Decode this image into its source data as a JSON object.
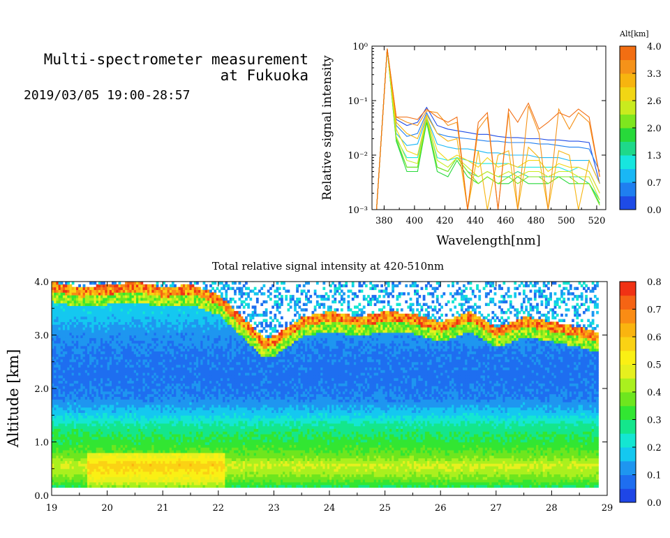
{
  "header": {
    "title_line1": "Multi-spectrometer measurement",
    "title_line2": "at Fukuoka",
    "datetime": "2019/03/05 19:00-28:57"
  },
  "colors": {
    "altitude_scale": [
      "#1e4be6",
      "#1f7ff0",
      "#19b7f5",
      "#17e6df",
      "#1ed98a",
      "#27d93a",
      "#7ee61e",
      "#c9eb1e",
      "#f2d614",
      "#f7b40f",
      "#f59219",
      "#f26e12"
    ],
    "intensity_scale": [
      "#1e46e6",
      "#1e6ef0",
      "#1e96f0",
      "#14c8f0",
      "#14e6d2",
      "#14e68c",
      "#32e632",
      "#6ee61e",
      "#aaf01e",
      "#e6f01e",
      "#faf014",
      "#fad214",
      "#fab40f",
      "#fa8c14",
      "#f56414",
      "#f03214"
    ]
  },
  "chart_data": [
    {
      "type": "line",
      "title": "",
      "xlabel": "Wavelength[nm]",
      "ylabel": "Relative signal intensity",
      "xlim": [
        372,
        526
      ],
      "ylim": [
        0.001,
        1
      ],
      "log_y": true,
      "x_ticks": [
        "380",
        "400",
        "420",
        "440",
        "460",
        "480",
        "500",
        "520"
      ],
      "y_ticks": [
        "10⁰",
        "10⁻¹",
        "10⁻²",
        "10⁻³"
      ],
      "grid": false,
      "colorbar": {
        "label": "Alt[km]",
        "ticks": [
          "4.0",
          "3.3",
          "2.6",
          "2.0",
          "1.3",
          "0.7",
          "0.0"
        ],
        "range": [
          0.0,
          4.0
        ]
      },
      "x": [
        375,
        382,
        388,
        395,
        402,
        408,
        415,
        422,
        428,
        435,
        442,
        448,
        455,
        462,
        468,
        475,
        482,
        488,
        495,
        502,
        508,
        515,
        522
      ],
      "series": [
        {
          "alt": 0.1,
          "color": "#1e4be6",
          "values": [
            0.001,
            0.9,
            0.045,
            0.035,
            0.04,
            0.075,
            0.035,
            0.03,
            0.028,
            0.026,
            0.024,
            0.024,
            0.022,
            0.021,
            0.021,
            0.02,
            0.02,
            0.019,
            0.019,
            0.018,
            0.018,
            0.017,
            0.003
          ]
        },
        {
          "alt": 0.4,
          "color": "#1f7ff0",
          "values": [
            0.001,
            0.9,
            0.035,
            0.022,
            0.025,
            0.06,
            0.025,
            0.022,
            0.021,
            0.02,
            0.019,
            0.018,
            0.018,
            0.017,
            0.017,
            0.017,
            0.016,
            0.016,
            0.015,
            0.014,
            0.014,
            0.013,
            0.005
          ]
        },
        {
          "alt": 0.9,
          "color": "#19b7f5",
          "values": [
            0.001,
            0.9,
            0.025,
            0.015,
            0.016,
            0.05,
            0.016,
            0.014,
            0.013,
            0.013,
            0.012,
            0.011,
            0.011,
            0.01,
            0.01,
            0.01,
            0.009,
            0.009,
            0.009,
            0.008,
            0.008,
            0.008,
            0.003
          ]
        },
        {
          "alt": 1.3,
          "color": "#17e6df",
          "values": [
            0.001,
            0.9,
            0.02,
            0.009,
            0.009,
            0.045,
            0.009,
            0.008,
            0.009,
            0.008,
            0.007,
            0.007,
            0.007,
            0.007,
            0.006,
            0.006,
            0.006,
            0.006,
            0.006,
            0.005,
            0.006,
            0.005,
            0.002
          ]
        },
        {
          "alt": 1.7,
          "color": "#1ed98a",
          "values": [
            0.001,
            0.9,
            0.018,
            0.006,
            0.006,
            0.04,
            0.006,
            0.005,
            0.009,
            0.005,
            0.004,
            0.005,
            0.004,
            0.004,
            0.005,
            0.004,
            0.004,
            0.004,
            0.004,
            0.004,
            0.004,
            0.003,
            0.0015
          ]
        },
        {
          "alt": 2.1,
          "color": "#27d93a",
          "values": [
            0.001,
            0.9,
            0.018,
            0.005,
            0.005,
            0.04,
            0.005,
            0.004,
            0.008,
            0.004,
            0.003,
            0.004,
            0.003,
            0.003,
            0.004,
            0.003,
            0.003,
            0.003,
            0.004,
            0.003,
            0.003,
            0.003,
            0.0013
          ]
        },
        {
          "alt": 2.5,
          "color": "#7ee61e",
          "values": [
            0.001,
            0.9,
            0.02,
            0.006,
            0.006,
            0.045,
            0.006,
            0.005,
            0.009,
            0.005,
            0.003,
            0.004,
            0.003,
            0.004,
            0.003,
            0.004,
            0.004,
            0.003,
            0.004,
            0.004,
            0.003,
            0.003,
            0.0012
          ]
        },
        {
          "alt": 2.9,
          "color": "#c9eb1e",
          "values": [
            0.001,
            0.9,
            0.022,
            0.008,
            0.007,
            0.05,
            0.008,
            0.006,
            0.009,
            0.006,
            0.004,
            0.005,
            0.004,
            0.005,
            0.004,
            0.005,
            0.005,
            0.004,
            0.005,
            0.005,
            0.004,
            0.004,
            0.0015
          ]
        },
        {
          "alt": 3.3,
          "color": "#f2d614",
          "values": [
            0.001,
            0.9,
            0.03,
            0.012,
            0.01,
            0.05,
            0.012,
            0.008,
            0.01,
            0.008,
            0.006,
            0.009,
            0.006,
            0.007,
            0.006,
            0.008,
            0.008,
            0.005,
            0.007,
            0.006,
            0.006,
            0.005,
            0.002
          ]
        },
        {
          "alt": 3.6,
          "color": "#f7b40f",
          "values": [
            0.001,
            0.9,
            0.04,
            0.025,
            0.02,
            0.055,
            0.025,
            0.018,
            0.02,
            0.001,
            0.012,
            0.001,
            0.01,
            0.012,
            0.001,
            0.014,
            0.009,
            0.001,
            0.012,
            0.01,
            0.001,
            0.008,
            0.003
          ]
        },
        {
          "alt": 3.9,
          "color": "#f59219",
          "values": [
            0.001,
            0.9,
            0.05,
            0.04,
            0.035,
            0.065,
            0.06,
            0.035,
            0.04,
            0.001,
            0.03,
            0.05,
            0.001,
            0.06,
            0.001,
            0.08,
            0.025,
            0.001,
            0.07,
            0.03,
            0.06,
            0.04,
            0.004
          ]
        },
        {
          "alt": 4.0,
          "color": "#f26e12",
          "values": [
            0.001,
            0.9,
            0.05,
            0.05,
            0.045,
            0.07,
            0.05,
            0.04,
            0.05,
            0.001,
            0.04,
            0.06,
            0.001,
            0.07,
            0.04,
            0.09,
            0.03,
            0.04,
            0.06,
            0.05,
            0.07,
            0.05,
            0.004
          ]
        }
      ]
    },
    {
      "type": "heatmap",
      "title": "Total relative signal intensity at 420-510nm",
      "xlabel": "",
      "ylabel": "Altitude [km]",
      "xlim": [
        19,
        29
      ],
      "ylim": [
        0.0,
        4.0
      ],
      "x_ticks": [
        "19",
        "20",
        "21",
        "22",
        "23",
        "24",
        "25",
        "26",
        "27",
        "28",
        "29"
      ],
      "y_ticks": [
        "4.0",
        "3.0",
        "2.0",
        "1.0",
        "0.0"
      ],
      "colorbar": {
        "ticks": [
          "0.8",
          "0.7",
          "0.6",
          "0.5",
          "0.4",
          "0.3",
          "0.2",
          "0.1",
          "0.0"
        ],
        "range": [
          0.0,
          0.8
        ]
      },
      "data_end_time": 28.83,
      "min_altitude": 0.15,
      "cloud_base_profile": {
        "time": [
          19.0,
          19.5,
          20.0,
          20.5,
          21.0,
          21.5,
          22.0,
          22.5,
          22.8,
          23.0,
          23.5,
          24.0,
          24.5,
          25.0,
          25.5,
          26.0,
          26.5,
          27.0,
          27.5,
          28.0,
          28.5,
          28.83
        ],
        "altitude": [
          3.85,
          3.75,
          3.8,
          3.85,
          3.75,
          3.8,
          3.6,
          3.1,
          2.8,
          2.85,
          3.2,
          3.3,
          3.2,
          3.3,
          3.25,
          3.1,
          3.3,
          3.0,
          3.2,
          3.1,
          3.0,
          2.9
        ]
      },
      "profile_by_altitude": {
        "altitude": [
          0.15,
          0.25,
          0.4,
          0.55,
          0.7,
          0.9,
          1.1,
          1.3,
          1.5,
          1.8,
          2.2,
          2.6,
          3.0,
          3.4
        ],
        "intensity": [
          0.3,
          0.36,
          0.42,
          0.46,
          0.38,
          0.33,
          0.3,
          0.26,
          0.18,
          0.1,
          0.08,
          0.09,
          0.12,
          0.18
        ]
      }
    }
  ]
}
